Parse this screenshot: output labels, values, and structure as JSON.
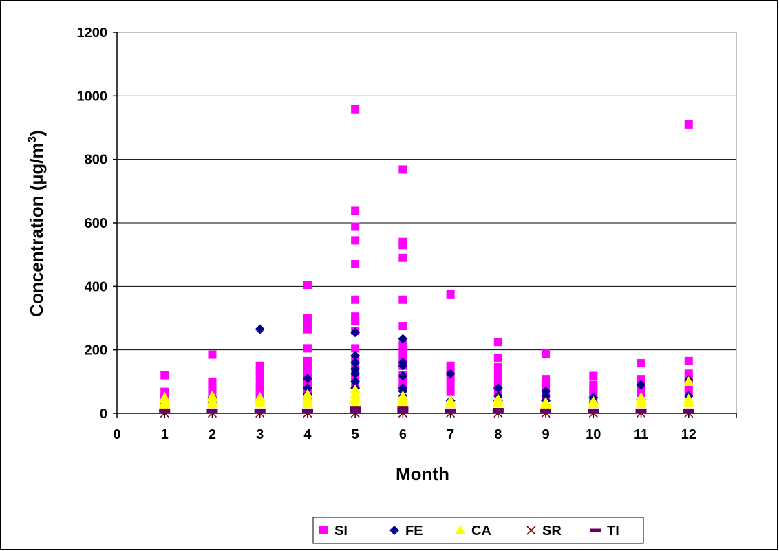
{
  "chart_data": {
    "type": "scatter",
    "title": "",
    "xlabel": "Month",
    "ylabel": "Concentration (µg/m3)",
    "ylabel_parts": {
      "text": "Concentration (",
      "mu": "µ",
      "unit": "g/m",
      "sup": "3",
      "close": ")"
    },
    "xlim": [
      0,
      13
    ],
    "ylim": [
      0,
      1200
    ],
    "x_ticks": [
      "0",
      "1",
      "2",
      "3",
      "4",
      "5",
      "6",
      "7",
      "8",
      "9",
      "10",
      "11",
      "12"
    ],
    "y_ticks": [
      "0",
      "200",
      "400",
      "600",
      "800",
      "1000",
      "1200"
    ],
    "grid": "horizontal",
    "legend_position": "bottom",
    "series": [
      {
        "name": "SI",
        "color": "#ff00ff",
        "marker": "square",
        "points": [
          [
            1,
            120
          ],
          [
            1,
            68
          ],
          [
            1,
            55
          ],
          [
            1,
            45
          ],
          [
            1,
            35
          ],
          [
            2,
            185
          ],
          [
            2,
            100
          ],
          [
            2,
            90
          ],
          [
            2,
            75
          ],
          [
            2,
            60
          ],
          [
            2,
            45
          ],
          [
            3,
            150
          ],
          [
            3,
            135
          ],
          [
            3,
            120
          ],
          [
            3,
            100
          ],
          [
            3,
            85
          ],
          [
            3,
            70
          ],
          [
            3,
            55
          ],
          [
            3,
            40
          ],
          [
            4,
            405
          ],
          [
            4,
            300
          ],
          [
            4,
            290
          ],
          [
            4,
            265
          ],
          [
            4,
            205
          ],
          [
            4,
            165
          ],
          [
            4,
            150
          ],
          [
            4,
            130
          ],
          [
            4,
            110
          ],
          [
            4,
            90
          ],
          [
            4,
            70
          ],
          [
            5,
            958
          ],
          [
            5,
            638
          ],
          [
            5,
            588
          ],
          [
            5,
            545
          ],
          [
            5,
            470
          ],
          [
            5,
            358
          ],
          [
            5,
            305
          ],
          [
            5,
            290
          ],
          [
            5,
            260
          ],
          [
            5,
            205
          ],
          [
            5,
            170
          ],
          [
            5,
            150
          ],
          [
            5,
            130
          ],
          [
            5,
            110
          ],
          [
            5,
            90
          ],
          [
            6,
            768
          ],
          [
            6,
            540
          ],
          [
            6,
            530
          ],
          [
            6,
            490
          ],
          [
            6,
            358
          ],
          [
            6,
            275
          ],
          [
            6,
            215
          ],
          [
            6,
            195
          ],
          [
            6,
            175
          ],
          [
            6,
            150
          ],
          [
            6,
            120
          ],
          [
            6,
            100
          ],
          [
            6,
            80
          ],
          [
            7,
            375
          ],
          [
            7,
            150
          ],
          [
            7,
            130
          ],
          [
            7,
            110
          ],
          [
            7,
            90
          ],
          [
            7,
            70
          ],
          [
            8,
            225
          ],
          [
            8,
            175
          ],
          [
            8,
            145
          ],
          [
            8,
            125
          ],
          [
            8,
            105
          ],
          [
            8,
            85
          ],
          [
            8,
            65
          ],
          [
            9,
            188
          ],
          [
            9,
            108
          ],
          [
            9,
            95
          ],
          [
            9,
            80
          ],
          [
            9,
            65
          ],
          [
            9,
            50
          ],
          [
            10,
            118
          ],
          [
            10,
            90
          ],
          [
            10,
            75
          ],
          [
            10,
            60
          ],
          [
            10,
            45
          ],
          [
            11,
            158
          ],
          [
            11,
            108
          ],
          [
            11,
            95
          ],
          [
            11,
            80
          ],
          [
            11,
            65
          ],
          [
            12,
            910
          ],
          [
            12,
            165
          ],
          [
            12,
            125
          ],
          [
            12,
            105
          ],
          [
            12,
            90
          ],
          [
            12,
            70
          ]
        ]
      },
      {
        "name": "FE",
        "color": "#00008b",
        "marker": "diamond",
        "points": [
          [
            1,
            40
          ],
          [
            1,
            30
          ],
          [
            2,
            50
          ],
          [
            2,
            35
          ],
          [
            3,
            265
          ],
          [
            3,
            40
          ],
          [
            4,
            110
          ],
          [
            4,
            80
          ],
          [
            4,
            60
          ],
          [
            4,
            45
          ],
          [
            5,
            255
          ],
          [
            5,
            182
          ],
          [
            5,
            160
          ],
          [
            5,
            140
          ],
          [
            5,
            125
          ],
          [
            5,
            100
          ],
          [
            5,
            80
          ],
          [
            6,
            235
          ],
          [
            6,
            160
          ],
          [
            6,
            150
          ],
          [
            6,
            118
          ],
          [
            6,
            80
          ],
          [
            6,
            70
          ],
          [
            6,
            55
          ],
          [
            7,
            125
          ],
          [
            7,
            40
          ],
          [
            8,
            80
          ],
          [
            8,
            55
          ],
          [
            8,
            40
          ],
          [
            9,
            70
          ],
          [
            9,
            55
          ],
          [
            9,
            40
          ],
          [
            10,
            50
          ],
          [
            10,
            35
          ],
          [
            11,
            90
          ],
          [
            11,
            45
          ],
          [
            12,
            105
          ],
          [
            12,
            55
          ]
        ]
      },
      {
        "name": "CA",
        "color": "#ffff00",
        "marker": "triangle",
        "points": [
          [
            1,
            50
          ],
          [
            1,
            45
          ],
          [
            1,
            35
          ],
          [
            1,
            28
          ],
          [
            2,
            55
          ],
          [
            2,
            48
          ],
          [
            2,
            38
          ],
          [
            2,
            30
          ],
          [
            3,
            50
          ],
          [
            3,
            42
          ],
          [
            3,
            35
          ],
          [
            4,
            60
          ],
          [
            4,
            50
          ],
          [
            4,
            40
          ],
          [
            4,
            30
          ],
          [
            5,
            75
          ],
          [
            5,
            62
          ],
          [
            5,
            50
          ],
          [
            5,
            40
          ],
          [
            5,
            30
          ],
          [
            6,
            55
          ],
          [
            6,
            45
          ],
          [
            6,
            35
          ],
          [
            7,
            40
          ],
          [
            7,
            30
          ],
          [
            8,
            45
          ],
          [
            8,
            35
          ],
          [
            9,
            35
          ],
          [
            9,
            28
          ],
          [
            10,
            38
          ],
          [
            10,
            30
          ],
          [
            11,
            50
          ],
          [
            11,
            40
          ],
          [
            11,
            30
          ],
          [
            12,
            100
          ],
          [
            12,
            45
          ],
          [
            12,
            35
          ]
        ]
      },
      {
        "name": "SR",
        "color": "#8b0000",
        "marker": "x",
        "points": [
          [
            1,
            1
          ],
          [
            2,
            1
          ],
          [
            3,
            1
          ],
          [
            4,
            1
          ],
          [
            5,
            1
          ],
          [
            6,
            1
          ],
          [
            7,
            1
          ],
          [
            8,
            1
          ],
          [
            9,
            1
          ],
          [
            10,
            1
          ],
          [
            11,
            1
          ],
          [
            12,
            1
          ]
        ]
      },
      {
        "name": "TI",
        "color": "#660066",
        "marker": "dash",
        "points": [
          [
            1,
            10
          ],
          [
            1,
            5
          ],
          [
            2,
            10
          ],
          [
            2,
            5
          ],
          [
            3,
            10
          ],
          [
            3,
            5
          ],
          [
            4,
            10
          ],
          [
            4,
            5
          ],
          [
            5,
            18
          ],
          [
            5,
            12
          ],
          [
            5,
            6
          ],
          [
            6,
            18
          ],
          [
            6,
            12
          ],
          [
            6,
            6
          ],
          [
            7,
            10
          ],
          [
            7,
            5
          ],
          [
            8,
            12
          ],
          [
            8,
            6
          ],
          [
            9,
            10
          ],
          [
            9,
            5
          ],
          [
            10,
            10
          ],
          [
            10,
            5
          ],
          [
            11,
            10
          ],
          [
            11,
            5
          ],
          [
            12,
            10
          ],
          [
            12,
            5
          ]
        ]
      }
    ]
  }
}
